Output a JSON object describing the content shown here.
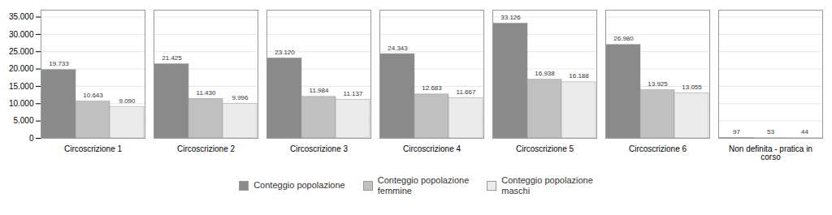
{
  "chart_data": {
    "type": "bar",
    "categories": [
      "Circoscrizione 1",
      "Circoscrizione 2",
      "Circoscrizione 3",
      "Circoscrizione 4",
      "Circoscrizione 5",
      "Circoscrizione 6",
      "Non definita - pratica in corso"
    ],
    "series": [
      {
        "name": "Conteggio popolazione",
        "color": "#8a8a8a",
        "values": [
          19733,
          21425,
          23120,
          24343,
          33126,
          26980,
          97
        ],
        "value_labels": [
          "19.733",
          "21.425",
          "23.120",
          "24.343",
          "33.126",
          "26.980",
          "97"
        ]
      },
      {
        "name": "Conteggio popolazione\nfemmine",
        "color": "#c0c0c0",
        "values": [
          10643,
          11430,
          11984,
          12683,
          16938,
          13925,
          53
        ],
        "value_labels": [
          "10.643",
          "11.430",
          "11.984",
          "12.683",
          "16.938",
          "13.925",
          "53"
        ]
      },
      {
        "name": "Conteggio popolazione\nmaschi",
        "color": "#ebebeb",
        "values": [
          9090,
          9996,
          11137,
          11667,
          16188,
          13055,
          44
        ],
        "value_labels": [
          "9.090",
          "9.996",
          "11.137",
          "11.667",
          "16.188",
          "13.055",
          "44"
        ]
      }
    ],
    "ylim": [
      0,
      37000
    ],
    "yticks": [
      0,
      {
        "value": 5000,
        "label": "5.000"
      },
      {
        "value": 10000,
        "label": "10.000"
      },
      {
        "value": 15000,
        "label": "15.000"
      },
      {
        "value": 20000,
        "label": "20.000"
      },
      {
        "value": 25000,
        "label": "25.000"
      },
      {
        "value": 30000,
        "label": "30.000"
      },
      {
        "value": 35000,
        "label": "35.000"
      }
    ],
    "grid": true,
    "legend": "bottom",
    "data_labels": true
  }
}
